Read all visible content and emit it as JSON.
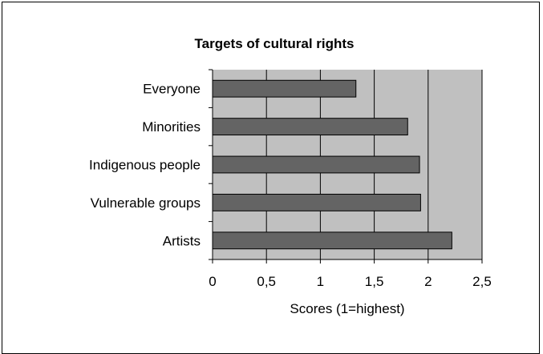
{
  "chart_data": {
    "type": "bar",
    "orientation": "horizontal",
    "title": "Targets of cultural rights",
    "xlabel": "Scores (1=highest)",
    "ylabel": "",
    "categories": [
      "Everyone",
      "Minorities",
      "Indigenous people",
      "Vulnerable groups",
      "Artists"
    ],
    "values": [
      1.33,
      1.81,
      1.92,
      1.93,
      2.22
    ],
    "xlim": [
      0,
      2.5
    ],
    "xticks": [
      "0",
      "0,5",
      "1",
      "1,5",
      "2",
      "2,5"
    ],
    "grid": "vertical",
    "legend": "none",
    "colors": {
      "bar_fill": "#646464",
      "plot_background": "#c0c0c0",
      "gridline": "#000000"
    }
  }
}
